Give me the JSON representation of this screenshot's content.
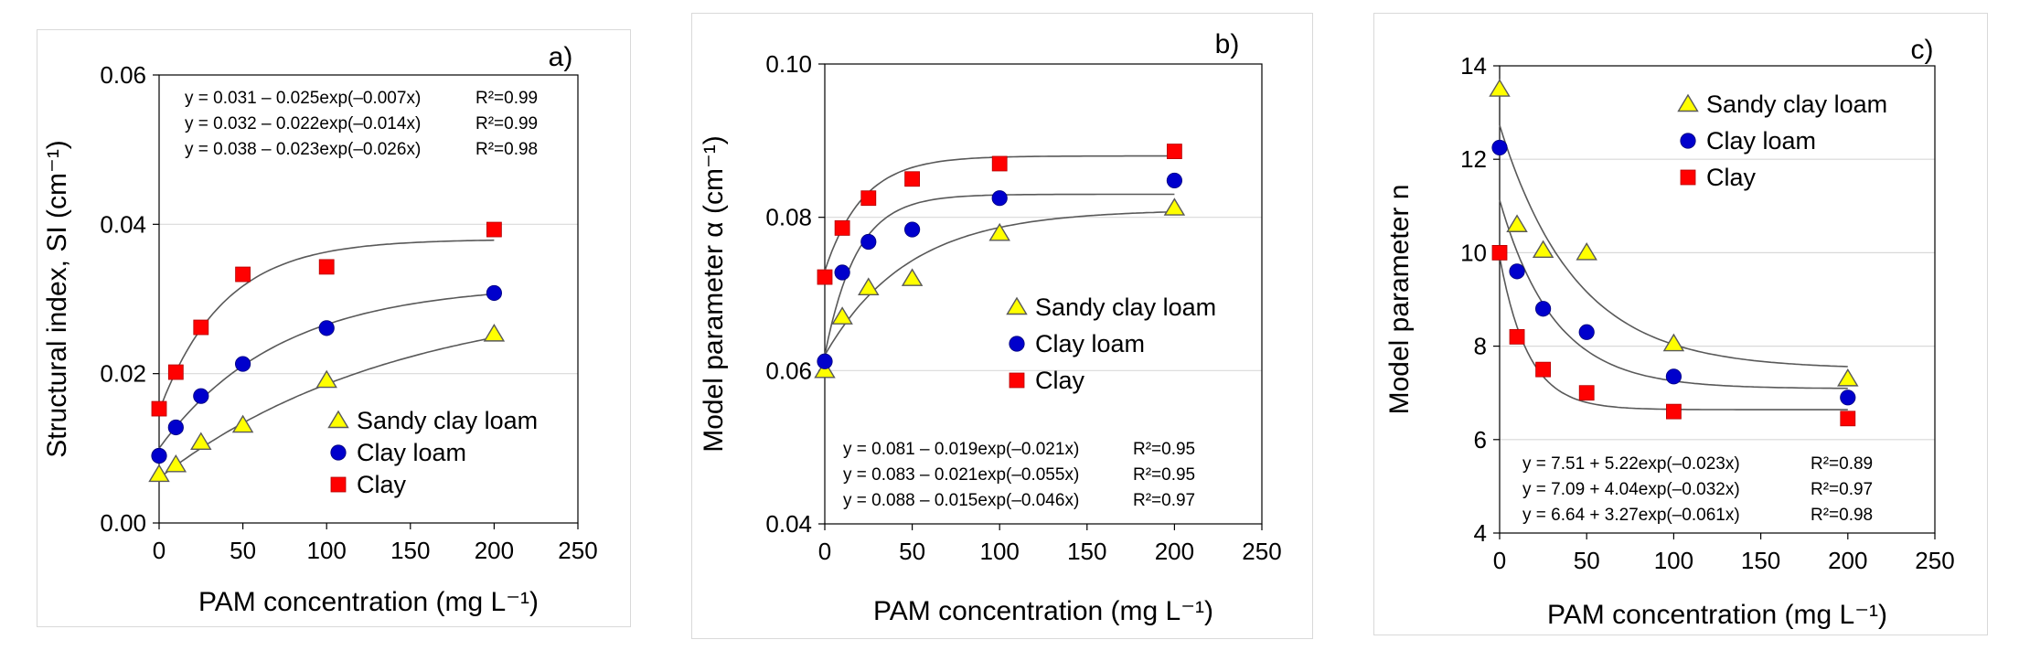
{
  "chart_data": [
    {
      "panel": "a)",
      "type": "scatter",
      "xlabel": "PAM  concentration (mg L⁻¹)",
      "ylabel": "Structural index, SI (cm⁻¹)",
      "xlim": [
        0,
        250
      ],
      "ylim": [
        0,
        0.06
      ],
      "xticks": [
        "0",
        "50",
        "100",
        "150",
        "200",
        "250"
      ],
      "yticks": [
        "0.00",
        "0.02",
        "0.04",
        "0.06"
      ],
      "equations": [
        {
          "text": "y = 0.031 – 0.025exp(–0.007x)",
          "r2": "R²=0.99"
        },
        {
          "text": "y = 0.032 – 0.022exp(–0.014x)",
          "r2": "R²=0.99"
        },
        {
          "text": "y = 0.038 – 0.023exp(–0.026x)",
          "r2": "R²=0.98"
        }
      ],
      "legend_position": "bottom-right",
      "series": [
        {
          "name": "Sandy clay loam",
          "marker": "triangle",
          "color": "#ffff00",
          "x": [
            0,
            10,
            25,
            50,
            100,
            200
          ],
          "y": [
            0.0065,
            0.0078,
            0.0108,
            0.0131,
            0.0191,
            0.0253
          ],
          "fit": {
            "a": 0.031,
            "b": 0.025,
            "k": 0.007
          }
        },
        {
          "name": "Clay loam",
          "marker": "circle",
          "color": "#0000cc",
          "x": [
            0,
            10,
            25,
            50,
            100,
            200
          ],
          "y": [
            0.009,
            0.0128,
            0.017,
            0.0213,
            0.0261,
            0.0308
          ],
          "fit": {
            "a": 0.032,
            "b": 0.022,
            "k": 0.014
          }
        },
        {
          "name": "Clay",
          "marker": "square",
          "color": "#ff0000",
          "x": [
            0,
            10,
            25,
            50,
            100,
            200
          ],
          "y": [
            0.0153,
            0.0202,
            0.0262,
            0.0333,
            0.0343,
            0.0393
          ],
          "fit": {
            "a": 0.038,
            "b": 0.023,
            "k": 0.026
          }
        }
      ]
    },
    {
      "panel": "b)",
      "type": "scatter",
      "xlabel": "PAM concentration (mg L⁻¹)",
      "ylabel": "Model parameter α (cm⁻¹)",
      "xlim": [
        0,
        250
      ],
      "ylim": [
        0.04,
        0.1
      ],
      "xticks": [
        "0",
        "50",
        "100",
        "150",
        "200",
        "250"
      ],
      "yticks": [
        "0.04",
        "0.06",
        "0.08",
        "0.10"
      ],
      "equations": [
        {
          "text": "y = 0.081 – 0.019exp(–0.021x)",
          "r2": "R²=0.95"
        },
        {
          "text": "y = 0.083 – 0.021exp(–0.055x)",
          "r2": "R²=0.95"
        },
        {
          "text": "y = 0.088 – 0.015exp(–0.046x)",
          "r2": "R²=0.97"
        }
      ],
      "legend_position": "center-right",
      "series": [
        {
          "name": "Sandy clay loam",
          "marker": "triangle",
          "color": "#ffff00",
          "x": [
            0,
            10,
            25,
            50,
            100,
            200
          ],
          "y": [
            0.06,
            0.067,
            0.0708,
            0.072,
            0.0779,
            0.0812
          ],
          "fit": {
            "a": 0.081,
            "b": 0.019,
            "k": 0.021
          }
        },
        {
          "name": "Clay loam",
          "marker": "circle",
          "color": "#0000cc",
          "x": [
            0,
            10,
            25,
            50,
            100,
            200
          ],
          "y": [
            0.0612,
            0.0728,
            0.0768,
            0.0784,
            0.0825,
            0.0848
          ],
          "fit": {
            "a": 0.083,
            "b": 0.021,
            "k": 0.055
          }
        },
        {
          "name": "Clay",
          "marker": "square",
          "color": "#ff0000",
          "x": [
            0,
            10,
            25,
            50,
            100,
            200
          ],
          "y": [
            0.0722,
            0.0786,
            0.0825,
            0.085,
            0.087,
            0.0886
          ],
          "fit": {
            "a": 0.088,
            "b": 0.015,
            "k": 0.046
          }
        }
      ]
    },
    {
      "panel": "c)",
      "type": "scatter",
      "xlabel": "PAM concentration (mg L⁻¹)",
      "ylabel": "Model parameter n",
      "xlim": [
        0,
        250
      ],
      "ylim": [
        4,
        14
      ],
      "xticks": [
        "0",
        "50",
        "100",
        "150",
        "200",
        "250"
      ],
      "yticks": [
        "4",
        "6",
        "8",
        "10",
        "12",
        "14"
      ],
      "equations": [
        {
          "text": "y = 7.51 + 5.22exp(–0.023x)",
          "r2": "R²=0.89"
        },
        {
          "text": "y = 7.09 + 4.04exp(–0.032x)",
          "r2": "R²=0.97"
        },
        {
          "text": "y = 6.64 + 3.27exp(–0.061x)",
          "r2": "R²=0.98"
        }
      ],
      "legend_position": "top-right",
      "series": [
        {
          "name": "Sandy clay loam",
          "marker": "triangle",
          "color": "#ffff00",
          "x": [
            0,
            10,
            25,
            50,
            100,
            200
          ],
          "y": [
            13.5,
            10.6,
            10.05,
            10.0,
            8.05,
            7.3
          ],
          "fit": {
            "a": 7.51,
            "b": -5.22,
            "k": 0.023
          }
        },
        {
          "name": "Clay loam",
          "marker": "circle",
          "color": "#0000cc",
          "x": [
            0,
            10,
            25,
            50,
            100,
            200
          ],
          "y": [
            12.25,
            9.6,
            8.8,
            8.3,
            7.35,
            6.9
          ],
          "fit": {
            "a": 7.09,
            "b": -4.04,
            "k": 0.032
          }
        },
        {
          "name": "Clay",
          "marker": "square",
          "color": "#ff0000",
          "x": [
            0,
            10,
            25,
            50,
            100,
            200
          ],
          "y": [
            10.0,
            8.2,
            7.5,
            7.0,
            6.6,
            6.45
          ],
          "fit": {
            "a": 6.64,
            "b": -3.27,
            "k": 0.061
          }
        }
      ]
    }
  ]
}
